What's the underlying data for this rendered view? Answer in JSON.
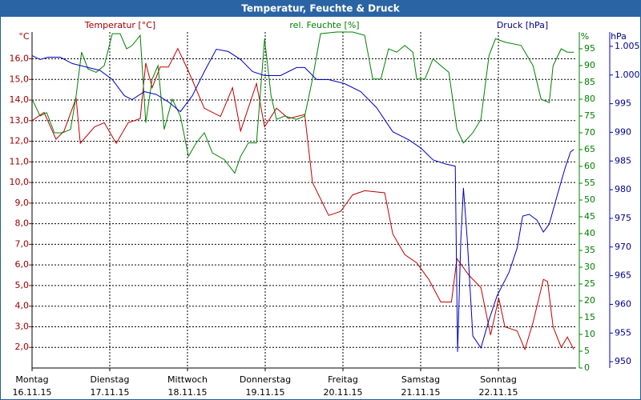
{
  "chart_data": {
    "type": "line",
    "title": "Temperatur, Feuchte & Druck",
    "xlim": [
      0,
      168
    ],
    "xticks": [
      {
        "value": 0,
        "label": [
          "Montag",
          "16.11.15"
        ]
      },
      {
        "value": 24,
        "label": [
          "Dienstag",
          "17.11.15"
        ]
      },
      {
        "value": 48,
        "label": [
          "Mittwoch",
          "18.11.15"
        ]
      },
      {
        "value": 72,
        "label": [
          "Donnerstag",
          "19.11.15"
        ]
      },
      {
        "value": 96,
        "label": [
          "Freitag",
          "20.11.15"
        ]
      },
      {
        "value": 120,
        "label": [
          "Samstag",
          "21.11.15"
        ]
      },
      {
        "value": 144,
        "label": [
          "Sonntag",
          "22.11.15"
        ]
      }
    ],
    "y_label": "Temperatur [°C]",
    "y_unit": "°C",
    "ylim": [
      1,
      17.3
    ],
    "yticks": [
      {
        "value": 2,
        "label": "2,0"
      },
      {
        "value": 3,
        "label": "3,0"
      },
      {
        "value": 4,
        "label": "4,0"
      },
      {
        "value": 5,
        "label": "5,0"
      },
      {
        "value": 6,
        "label": "6,0"
      },
      {
        "value": 7,
        "label": "7,0"
      },
      {
        "value": 8,
        "label": "8,0"
      },
      {
        "value": 9,
        "label": "9,0"
      },
      {
        "value": 10,
        "label": "10,0"
      },
      {
        "value": 11,
        "label": "11,0"
      },
      {
        "value": 12,
        "label": "12,0"
      },
      {
        "value": 13,
        "label": "13,0"
      },
      {
        "value": 14,
        "label": "14,0"
      },
      {
        "value": 15,
        "label": "15,0"
      },
      {
        "value": 16,
        "label": "16,0"
      }
    ],
    "y2_label": "rel. Feuchte [%]",
    "y2_unit": "%",
    "y2lim": [
      0,
      100
    ],
    "y2ticks": [
      0,
      5,
      10,
      15,
      20,
      25,
      30,
      35,
      40,
      45,
      50,
      55,
      60,
      65,
      70,
      75,
      80,
      85,
      90,
      95
    ],
    "y3_label": "Druck [hPa]",
    "y3_unit": "hPa",
    "y3lim": [
      948.9,
      1007.5
    ],
    "y3ticks": [
      950,
      955,
      960,
      965,
      970,
      975,
      980,
      985,
      990,
      995,
      {
        "value": 1000,
        "label": "1.000"
      },
      {
        "value": 1005,
        "label": "1.005"
      }
    ],
    "grid": true,
    "series": [
      {
        "name": "Temperatur",
        "color": "#c00000",
        "axis": "y",
        "x": [
          0,
          3.7,
          7.4,
          9.9,
          13.6,
          14.9,
          19.3,
          22.3,
          26,
          29.7,
          33.4,
          35.1,
          37.1,
          39.6,
          42.1,
          45,
          48.3,
          53.2,
          58.2,
          61.9,
          64.4,
          69.3,
          71.8,
          75.5,
          79.2,
          84.2,
          86.6,
          91.6,
          95.3,
          99,
          102.7,
          108.9,
          111.4,
          115.1,
          118.8,
          122.5,
          126.2,
          129.5,
          131.2,
          134.9,
          138.6,
          141.6,
          144.1,
          146,
          149.8,
          152.2,
          154.7,
          157.9,
          159.2,
          160.9,
          163.4,
          165.3,
          167.3
        ],
        "values": [
          13.0,
          13.4,
          12.1,
          12.5,
          14.1,
          11.9,
          12.7,
          12.9,
          11.9,
          12.9,
          13.1,
          15.8,
          14.6,
          15.6,
          15.6,
          16.5,
          15.4,
          13.6,
          13.2,
          14.6,
          12.5,
          14.8,
          12.7,
          13.6,
          13.1,
          13.3,
          10.0,
          8.4,
          8.6,
          9.4,
          9.6,
          9.5,
          7.5,
          6.5,
          6.1,
          5.3,
          4.2,
          4.2,
          6.3,
          5.5,
          4.9,
          2.6,
          4.4,
          3.0,
          2.8,
          1.9,
          3.2,
          5.3,
          5.2,
          3.0,
          2.0,
          2.5,
          1.9
        ]
      },
      {
        "name": "Feuchte",
        "color": "#008000",
        "axis": "y2",
        "x": [
          0,
          2.5,
          4.5,
          6.9,
          9.4,
          11.9,
          13.6,
          15.3,
          17.3,
          19.8,
          22.3,
          24.8,
          27.2,
          29.2,
          30.9,
          33.4,
          35.1,
          37.1,
          38.9,
          40.8,
          43.3,
          45.8,
          48.3,
          50.7,
          53.2,
          55.7,
          59.4,
          62.6,
          64.4,
          66.8,
          69.3,
          71.8,
          73.8,
          75.5,
          78,
          81.7,
          84.2,
          86.6,
          89.1,
          94.1,
          99,
          102.7,
          105.2,
          107.7,
          110.1,
          112.6,
          115.1,
          117.6,
          118.8,
          121.3,
          123.8,
          126.2,
          128.7,
          131.2,
          133.2,
          136.1,
          138.6,
          141.1,
          143.1,
          146,
          151,
          154.7,
          157.2,
          159.7,
          160.9,
          163.4,
          165.3,
          167.3
        ],
        "values": [
          80,
          75,
          76,
          70,
          70,
          71,
          81,
          94,
          89,
          88,
          90,
          99.5,
          99.5,
          95,
          96,
          99,
          73,
          86,
          90,
          71,
          80,
          75,
          63,
          67,
          70,
          64,
          62,
          58,
          63,
          67,
          67,
          98,
          81,
          74,
          75,
          74,
          75,
          86,
          99.5,
          100,
          100,
          99,
          86,
          86,
          95,
          94,
          96,
          94,
          86,
          86,
          92,
          90,
          88,
          71,
          67,
          70,
          74,
          93,
          98,
          97,
          96,
          90,
          80,
          79,
          90,
          95,
          94,
          94
        ]
      },
      {
        "name": "Druck",
        "color": "#0000c0",
        "axis": "y3",
        "x": [
          0,
          2.5,
          5,
          8.7,
          12.4,
          17.3,
          21,
          24.8,
          28.5,
          30.9,
          34.7,
          38.4,
          42.1,
          45.8,
          49.5,
          53.2,
          56.9,
          60.6,
          64.4,
          68.1,
          71.8,
          76.7,
          81.7,
          84.2,
          87.9,
          91.6,
          96.5,
          101.5,
          106.4,
          111.4,
          116.3,
          120,
          123.8,
          127.5,
          130.7,
          131.4,
          132.4,
          133.2,
          134.4,
          136.1,
          138.6,
          141.1,
          143.6,
          147.3,
          149.8,
          151.5,
          153.5,
          155.9,
          157.9,
          159.7,
          162.1,
          164.6,
          166.3,
          167.3
        ],
        "values": [
          1003.4,
          1002.7,
          1003.1,
          1003.1,
          1002.0,
          1001.3,
          1000.8,
          999.2,
          996.4,
          995.7,
          997.1,
          996.6,
          995.3,
          993.6,
          996.4,
          1000.6,
          1004.5,
          1004.1,
          1002.7,
          1000.6,
          999.9,
          999.9,
          1001.3,
          1001.3,
          999.2,
          999.2,
          998.5,
          997.1,
          994.3,
          990.1,
          988.7,
          987.3,
          985.2,
          984.5,
          984.1,
          951.7,
          971.2,
          980.3,
          971.2,
          954.5,
          952.4,
          957.3,
          961.5,
          965.6,
          969.8,
          975.4,
          975.7,
          974.7,
          972.6,
          974.0,
          978.9,
          983.8,
          986.6,
          987.0
        ]
      }
    ]
  }
}
